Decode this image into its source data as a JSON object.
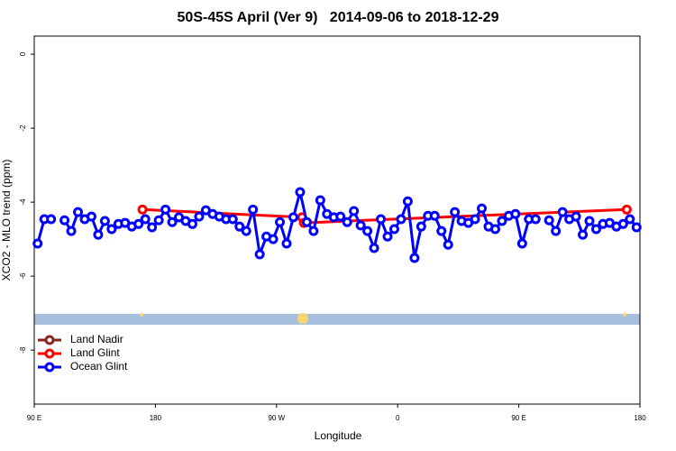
{
  "chart_data": {
    "type": "line",
    "title": "50S-45S April (Ver 9)   2014-09-06 to 2018-12-29",
    "x_label": "Longitude",
    "y_label": "XCO2 - MLO trend (ppm)",
    "xlim": [
      90,
      540
    ],
    "xticks": [
      {
        "value": 90,
        "label": "90 E"
      },
      {
        "value": 180,
        "label": "180"
      },
      {
        "value": 270,
        "label": "90 W"
      },
      {
        "value": 360,
        "label": "0"
      },
      {
        "value": 450,
        "label": "90 E"
      },
      {
        "value": 540,
        "label": "180"
      }
    ],
    "ylim": [
      -9.46,
      0.49
    ],
    "yticks": [
      0,
      -2,
      -4,
      -6,
      -8
    ],
    "legend": "bottom-left",
    "series": [
      {
        "name": "Land Nadir",
        "color": "#8b2323",
        "x": [],
        "values": []
      },
      {
        "name": "Land Glint",
        "color": "#ff0000",
        "x": [
          170.4,
          288.9,
          290.3,
          530.2
        ],
        "values": [
          -4.2,
          -4.41,
          -4.56,
          -4.2
        ]
      },
      {
        "name": "Ocean Glint",
        "color": "#0000ff",
        "x": [
          92.5,
          97.5,
          102.5,
          107.5,
          112.5,
          117.5,
          122.5,
          127.5,
          132.5,
          137.5,
          142.5,
          147.5,
          152.5,
          157.5,
          162.5,
          167.5,
          172.5,
          177.5,
          182.5,
          187.5,
          192.5,
          197.5,
          202.5,
          207.5,
          212.5,
          217.5,
          222.5,
          227.5,
          232.5,
          237.5,
          242.5,
          247.5,
          252.5,
          257.5,
          262.5,
          267.5,
          272.5,
          277.5,
          282.5,
          287.5,
          292.5,
          297.5,
          302.5,
          307.5,
          312.5,
          317.5,
          322.5,
          327.5,
          332.5,
          337.5,
          342.5,
          347.5,
          352.5,
          357.5,
          362.5,
          367.5,
          372.5,
          377.5,
          382.5,
          387.5,
          392.5,
          397.5,
          402.5,
          407.5,
          412.5,
          417.5,
          422.5,
          427.5,
          432.5,
          437.5,
          442.5,
          447.5,
          452.5,
          457.5,
          462.5,
          467.5,
          472.5,
          477.5,
          482.5,
          487.5,
          492.5,
          497.5,
          502.5,
          507.5,
          512.5,
          517.5,
          522.5,
          527.5,
          532.5,
          537.5
        ],
        "values": [
          -5.12,
          -4.46,
          -4.46,
          null,
          -4.49,
          -4.78,
          -4.27,
          -4.46,
          -4.39,
          -4.88,
          -4.51,
          -4.73,
          -4.59,
          -4.56,
          -4.66,
          -4.59,
          -4.46,
          -4.68,
          -4.49,
          -4.2,
          -4.54,
          -4.41,
          -4.51,
          -4.59,
          -4.39,
          -4.22,
          -4.32,
          -4.39,
          -4.46,
          -4.46,
          -4.66,
          -4.78,
          -4.2,
          -5.41,
          -4.93,
          -5.0,
          -4.54,
          -5.12,
          -4.41,
          -3.73,
          -4.54,
          -4.78,
          -3.95,
          -4.32,
          -4.41,
          -4.39,
          -4.54,
          -4.24,
          -4.63,
          -4.78,
          -5.24,
          -4.46,
          -4.93,
          -4.73,
          -4.46,
          -3.98,
          -5.51,
          -4.66,
          -4.37,
          -4.37,
          -4.78,
          -5.15,
          -4.27,
          -4.51,
          -4.56,
          -4.46,
          -4.17,
          -4.66,
          -4.73,
          -4.51,
          -4.37,
          -4.32,
          -5.12,
          -4.46,
          -4.46,
          null,
          -4.49,
          -4.78,
          -4.27,
          -4.46,
          -4.39,
          -4.88,
          -4.51,
          -4.73,
          -4.59,
          -4.56,
          -4.66,
          -4.59,
          -4.46,
          -4.68
        ]
      }
    ]
  }
}
